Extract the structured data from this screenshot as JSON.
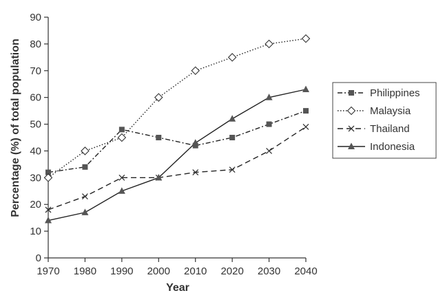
{
  "chart_data": {
    "type": "line",
    "xlabel": "Year",
    "ylabel": "Percentage (%) of total population",
    "x": [
      1970,
      1980,
      1990,
      2000,
      2010,
      2020,
      2030,
      2040
    ],
    "xlim": [
      1970,
      2040
    ],
    "ylim": [
      0,
      90
    ],
    "yticks": [
      0,
      10,
      20,
      30,
      40,
      50,
      60,
      70,
      80,
      90
    ],
    "grid": false,
    "legend_position": "right",
    "series": [
      {
        "name": "Philippines",
        "marker": "square",
        "dash": "dash-dot",
        "values": [
          32,
          34,
          48,
          45,
          42,
          45,
          50,
          55
        ]
      },
      {
        "name": "Malaysia",
        "marker": "diamond-open",
        "dash": "dotted",
        "values": [
          30,
          40,
          45,
          60,
          70,
          75,
          80,
          82
        ]
      },
      {
        "name": "Thailand",
        "marker": "x",
        "dash": "dashed",
        "values": [
          18,
          23,
          30,
          30,
          32,
          33,
          40,
          49
        ]
      },
      {
        "name": "Indonesia",
        "marker": "triangle",
        "dash": "solid",
        "values": [
          14,
          17,
          25,
          30,
          43,
          52,
          60,
          63
        ]
      }
    ]
  }
}
